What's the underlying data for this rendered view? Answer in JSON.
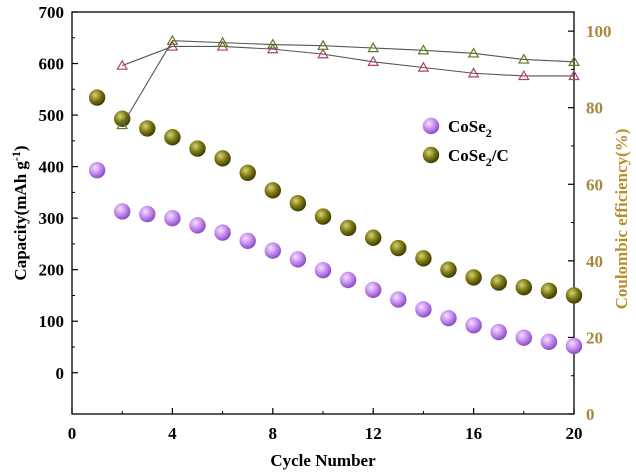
{
  "chart_data": {
    "type": "scatter",
    "xlabel": "Cycle Number",
    "ylabel": "Capacity(mAh g",
    "ylabel_sup": "-1",
    "ylabel_close": ")",
    "y2label": "Coulombic efficiency(%)",
    "xlim": [
      0,
      20
    ],
    "ylim": [
      -80,
      700
    ],
    "y2lim": [
      0,
      105
    ],
    "x_ticks": [
      0,
      4,
      8,
      12,
      16,
      20
    ],
    "y_ticks": [
      0,
      100,
      200,
      300,
      400,
      500,
      600,
      700
    ],
    "y2_ticks": [
      0,
      20,
      40,
      60,
      80,
      100
    ],
    "legend_position": "right-middle",
    "series": [
      {
        "name": "CoSe2",
        "name_base": "CoSe",
        "name_sub": "2",
        "name_tail": "",
        "axis": "left",
        "marker": "circle",
        "color": "#c58af0",
        "x": [
          1,
          2,
          3,
          4,
          5,
          6,
          7,
          8,
          9,
          10,
          11,
          12,
          13,
          14,
          15,
          16,
          17,
          18,
          19,
          20
        ],
        "values": [
          393,
          313,
          308,
          300,
          286,
          272,
          256,
          237,
          220,
          199,
          180,
          161,
          142,
          123,
          106,
          92,
          79,
          68,
          60,
          52
        ]
      },
      {
        "name": "CoSe2/C",
        "name_base": "CoSe",
        "name_sub": "2",
        "name_tail": "/C",
        "axis": "left",
        "marker": "circle",
        "color": "#7d7a12",
        "x": [
          1,
          2,
          3,
          4,
          5,
          6,
          7,
          8,
          9,
          10,
          11,
          12,
          13,
          14,
          15,
          16,
          17,
          18,
          19,
          20
        ],
        "values": [
          534,
          493,
          474,
          457,
          435,
          416,
          388,
          354,
          329,
          303,
          281,
          262,
          242,
          222,
          200,
          185,
          175,
          166,
          159,
          150
        ]
      },
      {
        "axis": "right",
        "marker": "triangle",
        "color": "#b0406e",
        "x": [
          2,
          4,
          6,
          8,
          10,
          12,
          14,
          16,
          18,
          20
        ],
        "values": [
          91,
          96,
          96,
          95.3,
          94,
          92,
          90.5,
          89,
          88.3,
          88.3
        ]
      },
      {
        "axis": "right",
        "marker": "triangle",
        "color": "#5c7a1a",
        "x": [
          2,
          4,
          6,
          8,
          10,
          12,
          14,
          16,
          18,
          20
        ],
        "values": [
          75.5,
          97.5,
          97,
          96.5,
          96.2,
          95.6,
          95,
          94.2,
          92.6,
          92
        ]
      }
    ]
  }
}
